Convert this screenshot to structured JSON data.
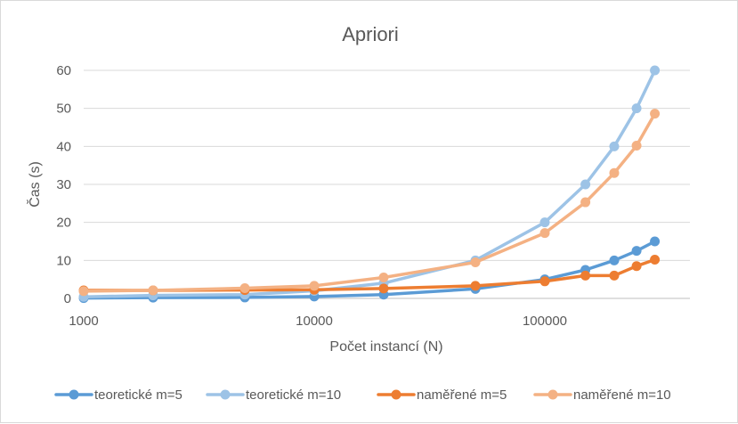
{
  "chart_data": {
    "type": "line",
    "title": "Apriori",
    "xlabel": "Počet instancí (N)",
    "ylabel": "Čas (s)",
    "x_scale": "log",
    "xlim": [
      1000,
      300000
    ],
    "ylim": [
      0,
      60
    ],
    "x_ticks": [
      1000,
      10000,
      100000
    ],
    "x_tick_labels": [
      "1000",
      "10000",
      "100000"
    ],
    "y_ticks": [
      0,
      10,
      20,
      30,
      40,
      50,
      60
    ],
    "y_tick_labels": [
      "0",
      "10",
      "20",
      "30",
      "40",
      "50",
      "60"
    ],
    "grid": true,
    "legend_position": "bottom",
    "x": [
      1000,
      2000,
      5000,
      10000,
      20000,
      50000,
      100000,
      150000,
      200000,
      250000,
      300000
    ],
    "series": [
      {
        "name": "teoretické m=5",
        "color": "#5b9bd5",
        "values": [
          0.1,
          0.2,
          0.25,
          0.5,
          1.0,
          2.5,
          5.0,
          7.5,
          10.0,
          12.5,
          15.0
        ]
      },
      {
        "name": "teoretické m=10",
        "color": "#9dc3e6",
        "values": [
          0.4,
          0.8,
          1.0,
          2.0,
          4.0,
          10.0,
          20.0,
          30.0,
          40.0,
          50.0,
          60.0
        ]
      },
      {
        "name": "naměřené m=5",
        "color": "#ed7d31",
        "values": [
          2.1,
          2.1,
          2.2,
          2.3,
          2.6,
          3.3,
          4.5,
          6.0,
          6.0,
          8.5,
          10.2
        ]
      },
      {
        "name": "naměřené m=10",
        "color": "#f4b183",
        "values": [
          1.9,
          2.1,
          2.7,
          3.3,
          5.5,
          9.5,
          17.2,
          25.3,
          33.0,
          40.2,
          48.6
        ]
      }
    ]
  }
}
